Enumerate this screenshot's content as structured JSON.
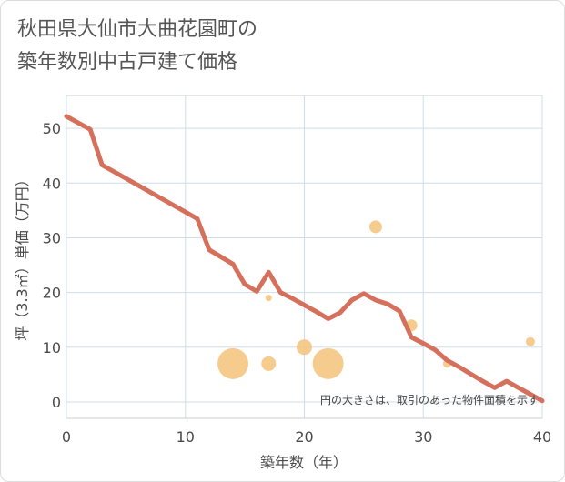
{
  "title_line1": "秋田県大仙市大曲花園町の",
  "title_line2": "築年数別中古戸建て価格",
  "chart_data": {
    "type": "line",
    "title": "秋田県大仙市大曲花園町の築年数別中古戸建て価格",
    "xlabel": "築年数（年）",
    "ylabel": "坪（3.3㎡）単価（万円）",
    "xlim": [
      0,
      40
    ],
    "ylim": [
      -3,
      56
    ],
    "xticks": [
      0,
      10,
      20,
      30,
      40
    ],
    "yticks": [
      0,
      10,
      20,
      30,
      40,
      50
    ],
    "grid": true,
    "note": "円の大きさは、取引のあった物件面積を示す",
    "line_color": "#d4705c",
    "bubble_color": "#f5c27a",
    "series": [
      {
        "name": "trend",
        "x": [
          0,
          2,
          3,
          11,
          12,
          14,
          15,
          16,
          17,
          18,
          19,
          20,
          21,
          22,
          23,
          24,
          25,
          26,
          27,
          28,
          29,
          30,
          31,
          32,
          33,
          34,
          35,
          36,
          37,
          38,
          39,
          40
        ],
        "y": [
          52.2,
          49.8,
          43.3,
          33.5,
          27.8,
          25.2,
          21.5,
          20.2,
          23.7,
          20.0,
          18.9,
          17.7,
          16.5,
          15.2,
          16.3,
          18.6,
          19.8,
          18.6,
          17.9,
          16.6,
          11.8,
          10.7,
          9.5,
          7.6,
          6.4,
          5.1,
          3.8,
          2.6,
          3.8,
          2.6,
          1.4,
          0.2
        ]
      }
    ],
    "bubbles": [
      {
        "x": 14,
        "y": 7,
        "size": 17
      },
      {
        "x": 17,
        "y": 7,
        "size": 8
      },
      {
        "x": 17,
        "y": 19,
        "size": 3.5
      },
      {
        "x": 20,
        "y": 10,
        "size": 8.5
      },
      {
        "x": 22,
        "y": 7,
        "size": 17
      },
      {
        "x": 26,
        "y": 32,
        "size": 7
      },
      {
        "x": 29,
        "y": 14,
        "size": 6.5
      },
      {
        "x": 32,
        "y": 7,
        "size": 4.5
      },
      {
        "x": 39,
        "y": 11,
        "size": 5
      }
    ]
  }
}
